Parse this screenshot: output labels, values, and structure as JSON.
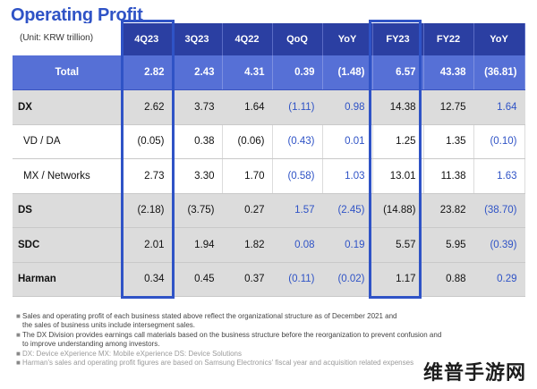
{
  "title": "Operating Profit",
  "unit": "(Unit: KRW trillion)",
  "columns": [
    "4Q23",
    "3Q23",
    "4Q22",
    "QoQ",
    "YoY",
    "FY23",
    "FY22",
    "YoY"
  ],
  "rows": [
    {
      "label": "Total",
      "values": [
        "2.82",
        "2.43",
        "4.31",
        "0.39",
        "(1.48)",
        "6.57",
        "43.38",
        "(36.81)"
      ]
    },
    {
      "label": "DX",
      "values": [
        "2.62",
        "3.73",
        "1.64",
        "(1.11)",
        "0.98",
        "14.38",
        "12.75",
        "1.64"
      ]
    },
    {
      "label": "VD / DA",
      "values": [
        "(0.05)",
        "0.38",
        "(0.06)",
        "(0.43)",
        "0.01",
        "1.25",
        "1.35",
        "(0.10)"
      ]
    },
    {
      "label": "MX / Networks",
      "values": [
        "2.73",
        "3.30",
        "1.70",
        "(0.58)",
        "1.03",
        "13.01",
        "11.38",
        "1.63"
      ]
    },
    {
      "label": "DS",
      "values": [
        "(2.18)",
        "(3.75)",
        "0.27",
        "1.57",
        "(2.45)",
        "(14.88)",
        "23.82",
        "(38.70)"
      ]
    },
    {
      "label": "SDC",
      "values": [
        "2.01",
        "1.94",
        "1.82",
        "0.08",
        "0.19",
        "5.57",
        "5.95",
        "(0.39)"
      ]
    },
    {
      "label": "Harman",
      "values": [
        "0.34",
        "0.45",
        "0.37",
        "(0.11)",
        "(0.02)",
        "1.17",
        "0.88",
        "0.29"
      ]
    }
  ],
  "notes": [
    {
      "lines": [
        "Sales and operating profit of each business stated above reflect the organizational structure as of December 2021 and",
        "the sales of business units include intersegment sales."
      ]
    },
    {
      "lines": [
        "The DX Division provides earnings call materials based on the business structure before the reorganization to prevent confusion and",
        "to improve understanding among investors."
      ]
    },
    {
      "lines": [
        "DX: Device eXperience MX: Mobile eXperience DS: Device Solutions"
      ]
    },
    {
      "lines": [
        "Harman's sales and operating profit figures are based on Samsung Electronics' fiscal year and acquisition related expenses"
      ]
    }
  ],
  "watermark": "维普手游网",
  "colors": {
    "header": "#2b3fa2",
    "total_row": "#5670d6",
    "highlight": "#2f53c6",
    "negative_text": "#2f53c6",
    "gray_row": "#dcdcdc"
  }
}
